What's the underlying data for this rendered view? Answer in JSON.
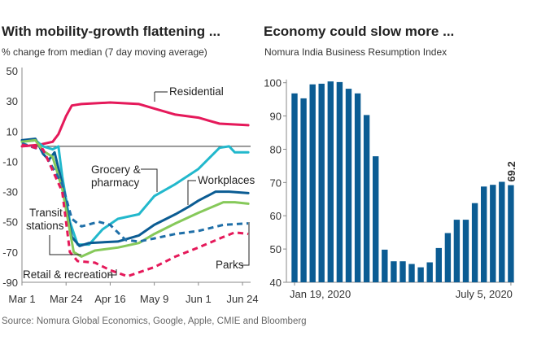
{
  "chart_data": [
    {
      "type": "line",
      "title": "With mobility-growth flattening ...",
      "subtitle": "% change from median (7 day moving average)",
      "ylim": [
        -90,
        50
      ],
      "yticks": [
        50,
        30,
        10,
        -10,
        -30,
        -50,
        -70,
        -90
      ],
      "xticks": [
        "Mar 1",
        "Mar 24",
        "Apr 16",
        "May 9",
        "Jun 1",
        "Jun 24"
      ],
      "xtick_dates": [
        "2020-03-01",
        "2020-03-24",
        "2020-04-16",
        "2020-05-09",
        "2020-06-01",
        "2020-06-24"
      ],
      "grid": false,
      "baseline": 0,
      "series": [
        {
          "name": "Residential",
          "color": "#e5195a",
          "style": "solid",
          "x": [
            "2020-03-01",
            "2020-03-10",
            "2020-03-17",
            "2020-03-20",
            "2020-03-24",
            "2020-03-27",
            "2020-04-01",
            "2020-04-16",
            "2020-05-01",
            "2020-05-09",
            "2020-05-20",
            "2020-06-01",
            "2020-06-12",
            "2020-06-27"
          ],
          "y": [
            0,
            1,
            3,
            8,
            20,
            27,
            28,
            29,
            28,
            25,
            21,
            19,
            15,
            14
          ]
        },
        {
          "name": "Grocery & pharmacy",
          "color": "#22b8cc",
          "style": "solid",
          "x": [
            "2020-03-01",
            "2020-03-08",
            "2020-03-12",
            "2020-03-17",
            "2020-03-20",
            "2020-03-22",
            "2020-03-26",
            "2020-03-30",
            "2020-04-05",
            "2020-04-12",
            "2020-04-20",
            "2020-05-01",
            "2020-05-09",
            "2020-05-20",
            "2020-06-01",
            "2020-06-12",
            "2020-06-17",
            "2020-06-20",
            "2020-06-27"
          ],
          "y": [
            3,
            4,
            0,
            -2,
            0,
            -20,
            -50,
            -65,
            -65,
            -55,
            -48,
            -45,
            -33,
            -25,
            -15,
            -1,
            0,
            -4,
            -4
          ]
        },
        {
          "name": "Workplaces",
          "color": "#0b5c93",
          "style": "solid",
          "x": [
            "2020-03-01",
            "2020-03-08",
            "2020-03-12",
            "2020-03-15",
            "2020-03-18",
            "2020-03-22",
            "2020-03-27",
            "2020-03-31",
            "2020-04-05",
            "2020-04-20",
            "2020-05-01",
            "2020-05-09",
            "2020-05-20",
            "2020-05-27",
            "2020-06-01",
            "2020-06-10",
            "2020-06-17",
            "2020-06-27"
          ],
          "y": [
            4,
            5,
            -5,
            -9,
            -4,
            -25,
            -60,
            -66,
            -64,
            -63,
            -59,
            -52,
            -45,
            -40,
            -36,
            -30,
            -30,
            -31
          ]
        },
        {
          "name": "Transit stations",
          "color": "#86c95a",
          "style": "solid",
          "x": [
            "2020-03-01",
            "2020-03-08",
            "2020-03-12",
            "2020-03-17",
            "2020-03-22",
            "2020-03-28",
            "2020-04-01",
            "2020-04-08",
            "2020-04-20",
            "2020-05-01",
            "2020-05-09",
            "2020-05-20",
            "2020-06-01",
            "2020-06-14",
            "2020-06-20",
            "2020-06-27"
          ],
          "y": [
            3,
            4,
            -3,
            -7,
            -28,
            -70,
            -73,
            -69,
            -67,
            -64,
            -58,
            -51,
            -44,
            -37,
            -37,
            -38
          ]
        },
        {
          "name": "Parks",
          "color": "#1f6fa8",
          "style": "dashed",
          "x": [
            "2020-03-01",
            "2020-03-12",
            "2020-03-22",
            "2020-03-27",
            "2020-04-01",
            "2020-04-10",
            "2020-04-16",
            "2020-04-24",
            "2020-05-01",
            "2020-05-09",
            "2020-05-20",
            "2020-06-01",
            "2020-06-14",
            "2020-06-27"
          ],
          "y": [
            2,
            -3,
            -25,
            -48,
            -53,
            -50,
            -52,
            -62,
            -63,
            -61,
            -58,
            -56,
            -52,
            -51
          ]
        },
        {
          "name": "Retail & recreation",
          "color": "#e5195a",
          "style": "dashed",
          "x": [
            "2020-03-01",
            "2020-03-12",
            "2020-03-22",
            "2020-03-26",
            "2020-03-30",
            "2020-04-08",
            "2020-04-16",
            "2020-04-25",
            "2020-05-09",
            "2020-05-20",
            "2020-06-01",
            "2020-06-14",
            "2020-06-20",
            "2020-06-27"
          ],
          "y": [
            1,
            -2,
            -30,
            -70,
            -76,
            -77,
            -82,
            -86,
            -80,
            -73,
            -67,
            -60,
            -57,
            -58
          ]
        }
      ],
      "annotations": {
        "residential": "Residential",
        "grocery_1": "Grocery &",
        "grocery_2": "pharmacy",
        "workplaces": "Workplaces",
        "transit_1": "Transit",
        "transit_2": "stations",
        "parks": "Parks",
        "retail": "Retail & recreation"
      }
    },
    {
      "type": "bar",
      "title": "Economy could slow more ...",
      "subtitle": "Nomura India Business Resumption Index",
      "ylim": [
        40,
        100
      ],
      "yticks": [
        100,
        90,
        80,
        70,
        60,
        50,
        40
      ],
      "xtick_labels": [
        "Jan 19, 2020",
        "July 5, 2020"
      ],
      "color": "#0b5c93",
      "values": [
        96.8,
        95.3,
        99.5,
        99.7,
        100.4,
        100.2,
        98.2,
        96.8,
        90.3,
        77.9,
        49.8,
        46.3,
        46.3,
        45.5,
        44.5,
        46.0,
        50.3,
        54.8,
        58.8,
        58.8,
        63.8,
        68.8,
        69.3,
        70.2,
        69.2
      ],
      "last_label": "69.2"
    }
  ],
  "source": "Source: Nomura Global Economics, Google, Apple, CMIE and Bloomberg"
}
